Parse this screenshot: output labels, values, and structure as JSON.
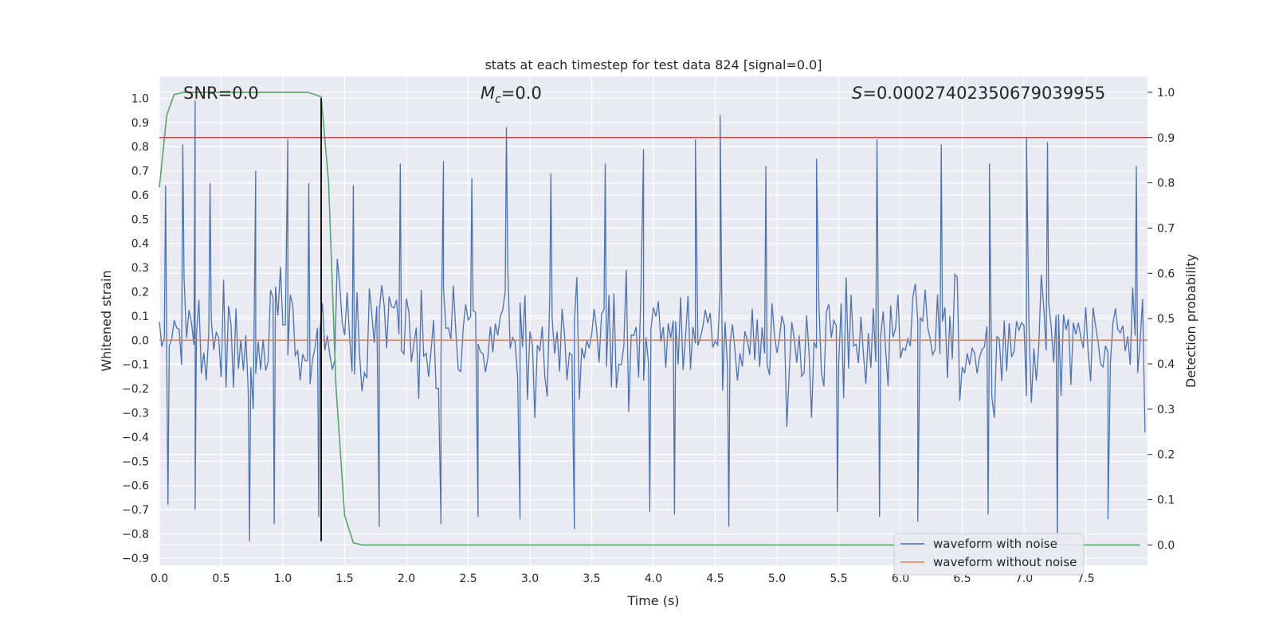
{
  "chart_data": {
    "type": "line",
    "title": "stats at each timestep for test data 824 [signal=0.0]",
    "xlabel": "Time (s)",
    "ylabel_left": "Whitened strain",
    "ylabel_right": "Detection probability",
    "xlim": [
      0.0,
      8.0
    ],
    "ylim_left": [
      -0.93,
      1.09
    ],
    "ylim_right": [
      -0.045,
      1.035
    ],
    "x_ticks": [
      "0.0",
      "0.5",
      "1.0",
      "1.5",
      "2.0",
      "2.5",
      "3.0",
      "3.5",
      "4.0",
      "4.5",
      "5.0",
      "5.5",
      "6.0",
      "6.5",
      "7.0",
      "7.5"
    ],
    "y_ticks_left": [
      "1.0",
      "0.9",
      "0.8",
      "0.7",
      "0.6",
      "0.5",
      "0.4",
      "0.3",
      "0.2",
      "0.1",
      "0.0",
      "−0.1",
      "−0.2",
      "−0.3",
      "−0.4",
      "−0.5",
      "−0.6",
      "−0.7",
      "−0.8",
      "−0.9"
    ],
    "y_ticks_right": [
      "1.0",
      "0.9",
      "0.8",
      "0.7",
      "0.6",
      "0.5",
      "0.4",
      "0.3",
      "0.2",
      "0.1",
      "0.0"
    ],
    "grid": true,
    "annotations": {
      "snr_label": "SNR=0.0",
      "mc_symbol": "M",
      "mc_subscript": "c",
      "mc_value": "=0.0",
      "s_symbol": "S",
      "s_value": "=0.00027402350679039955"
    },
    "threshold": {
      "axis": "right",
      "value": 0.9
    },
    "marker_time": 1.31,
    "series": [
      {
        "name": "waveform with noise",
        "axis": "left",
        "color": "#4c72b0",
        "description": "dense noisy strain, sampled every 0.02 s, amplitude approx ±0.3 with spikes up to ±0.95",
        "peaks_positive": [
          [
            0.05,
            0.64
          ],
          [
            0.19,
            0.81
          ],
          [
            0.29,
            0.99
          ],
          [
            0.41,
            0.65
          ],
          [
            0.78,
            0.7
          ],
          [
            1.04,
            0.83
          ],
          [
            1.21,
            0.65
          ],
          [
            1.57,
            0.64
          ],
          [
            1.95,
            0.73
          ],
          [
            2.3,
            0.74
          ],
          [
            2.53,
            0.67
          ],
          [
            2.81,
            0.88
          ],
          [
            3.17,
            0.69
          ],
          [
            3.61,
            0.73
          ],
          [
            3.92,
            0.79
          ],
          [
            4.34,
            0.83
          ],
          [
            4.54,
            0.93
          ],
          [
            4.91,
            0.72
          ],
          [
            5.32,
            0.75
          ],
          [
            5.81,
            0.83
          ],
          [
            6.33,
            0.81
          ],
          [
            6.72,
            0.73
          ],
          [
            7.02,
            0.84
          ],
          [
            7.19,
            0.82
          ],
          [
            7.91,
            0.72
          ]
        ],
        "peaks_negative": [
          [
            0.07,
            -0.68
          ],
          [
            0.29,
            -0.7
          ],
          [
            0.73,
            -0.83
          ],
          [
            0.93,
            -0.76
          ],
          [
            1.29,
            -0.73
          ],
          [
            1.78,
            -0.77
          ],
          [
            2.28,
            -0.76
          ],
          [
            2.58,
            -0.73
          ],
          [
            2.92,
            -0.74
          ],
          [
            3.36,
            -0.78
          ],
          [
            3.97,
            -0.71
          ],
          [
            4.17,
            -0.72
          ],
          [
            4.61,
            -0.77
          ],
          [
            5.49,
            -0.71
          ],
          [
            5.83,
            -0.73
          ],
          [
            6.14,
            -0.75
          ],
          [
            6.71,
            -0.72
          ],
          [
            7.27,
            -0.85
          ],
          [
            7.68,
            -0.74
          ]
        ]
      },
      {
        "name": "waveform without noise",
        "axis": "left",
        "color": "#dd8452",
        "x": [
          0.0,
          8.0
        ],
        "y": [
          0.0,
          0.0
        ]
      },
      {
        "name": "detection probability",
        "axis": "right",
        "color": "#55a868",
        "x": [
          0.0,
          0.06,
          0.12,
          0.2,
          0.4,
          0.8,
          1.2,
          1.26,
          1.31,
          1.37,
          1.43,
          1.5,
          1.57,
          1.64,
          1.8,
          3.0,
          5.0,
          7.0,
          7.94
        ],
        "y": [
          0.79,
          0.95,
          0.995,
          1.0,
          1.0,
          1.0,
          1.0,
          0.995,
          0.99,
          0.8,
          0.35,
          0.065,
          0.005,
          0.0,
          0.0,
          0.0,
          0.0,
          0.0,
          0.0
        ]
      },
      {
        "name": "threshold",
        "axis": "right",
        "color": "#c44e52",
        "y": 0.9
      },
      {
        "name": "marker",
        "color": "#000000",
        "x": 1.31,
        "y_left": [
          -0.83,
          1.0
        ]
      }
    ],
    "legend": {
      "placement": "bottom-right",
      "entries": [
        "waveform with noise",
        "waveform without noise"
      ]
    }
  }
}
